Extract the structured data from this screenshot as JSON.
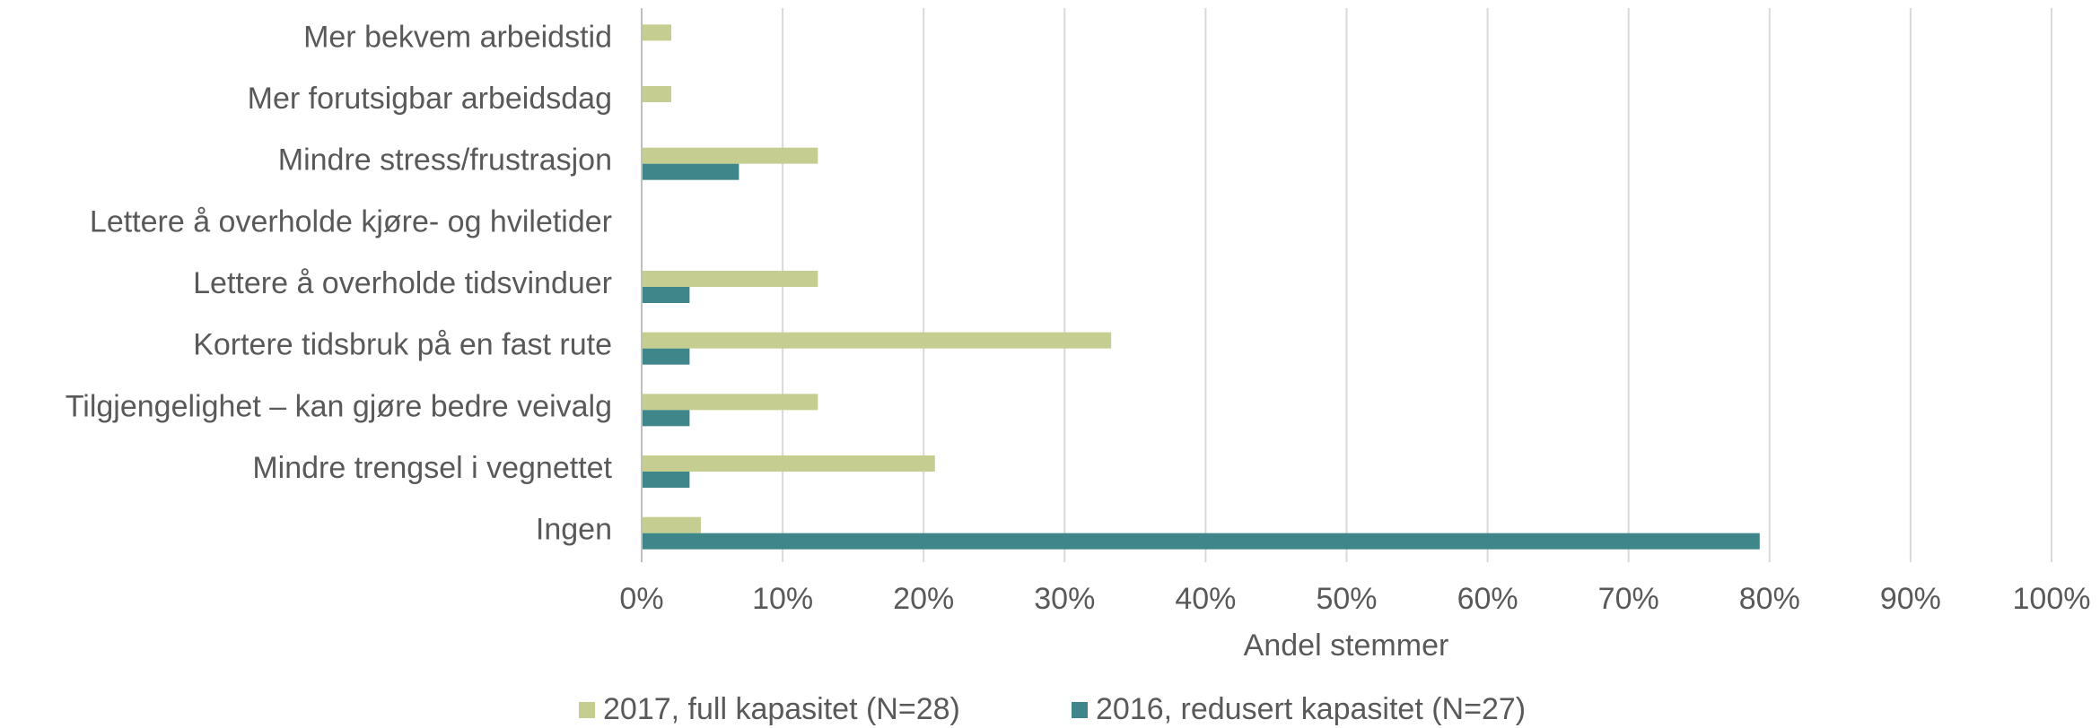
{
  "chart_data": {
    "type": "barh",
    "categories": [
      "Mer bekvem arbeidstid",
      "Mer forutsigbar arbeidsdag",
      "Mindre stress/frustrasjon",
      "Lettere å overholde kjøre- og hviletider",
      "Lettere å overholde tidsvinduer",
      "Kortere tidsbruk på en fast rute",
      "Tilgjengelighet – kan gjøre bedre veivalg",
      "Mindre trengsel i vegnettet",
      "Ingen"
    ],
    "series": [
      {
        "name": "2017, full kapasitet (N=28)",
        "color": "#c5cd91",
        "values": [
          2.1,
          2.1,
          12.5,
          0,
          12.5,
          33.3,
          12.5,
          20.8,
          4.2
        ]
      },
      {
        "name": "2016, redusert kapasitet (N=27)",
        "color": "#3f868a",
        "values": [
          0,
          0,
          6.9,
          0,
          3.4,
          3.4,
          3.4,
          3.4,
          79.3
        ]
      }
    ],
    "xlabel": "Andel stemmer",
    "xlim": [
      0,
      100
    ],
    "xticks": [
      {
        "value": 0,
        "label": "0%"
      },
      {
        "value": 10,
        "label": "10%"
      },
      {
        "value": 20,
        "label": "20%"
      },
      {
        "value": 30,
        "label": "30%"
      },
      {
        "value": 40,
        "label": "40%"
      },
      {
        "value": 50,
        "label": "50%"
      },
      {
        "value": 60,
        "label": "60%"
      },
      {
        "value": 70,
        "label": "70%"
      },
      {
        "value": 80,
        "label": "80%"
      },
      {
        "value": 90,
        "label": "90%"
      },
      {
        "value": 100,
        "label": "100%"
      }
    ],
    "grid": true,
    "legend": "bottom"
  }
}
